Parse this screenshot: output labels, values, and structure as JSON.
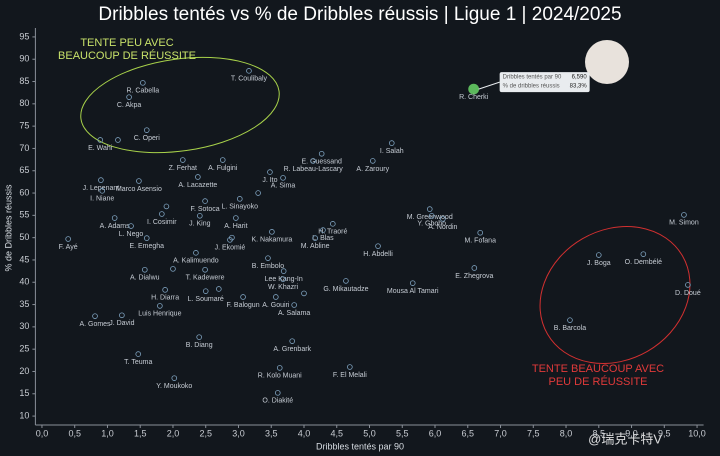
{
  "chart_data": {
    "type": "scatter",
    "title": "Dribbles tentés vs % de Dribbles réussis | Ligue 1 | 2024/2025",
    "x_label": "Dribbles tentés par 90",
    "y_label": "% de Dribbles réussis",
    "annotations": [
      "TENTE PEU AVEC",
      "BEAUCOUP DE RÉUSSITE",
      "TENTE BEAUCOUP AVEC",
      "PEU DE RÉUSSITE"
    ],
    "callout": {
      "x_caption": "Dribbles tentés par 90",
      "y_caption": "% de dribbles réussis"
    },
    "watermark": "@瑞克卡特V",
    "xlim": [
      -0.1,
      10.1
    ],
    "ylim": [
      8,
      97
    ],
    "xticks": [
      {
        "value": 0,
        "label": "0,0"
      },
      {
        "value": 0.5,
        "label": "0,5"
      },
      {
        "value": 1,
        "label": "1,0"
      },
      {
        "value": 1.5,
        "label": "1,5"
      },
      {
        "value": 2,
        "label": "2,0"
      },
      {
        "value": 2.5,
        "label": "2,5"
      },
      {
        "value": 3,
        "label": "3,0"
      },
      {
        "value": 3.5,
        "label": "3,5"
      },
      {
        "value": 4,
        "label": "4,0"
      },
      {
        "value": 4.5,
        "label": "4,5"
      },
      {
        "value": 5,
        "label": "5,0"
      },
      {
        "value": 5.5,
        "label": "5,5"
      },
      {
        "value": 6,
        "label": "6,0"
      },
      {
        "value": 6.5,
        "label": "6,5"
      },
      {
        "value": 7,
        "label": "7,0"
      },
      {
        "value": 7.5,
        "label": "7,5"
      },
      {
        "value": 8,
        "label": "8,0"
      },
      {
        "value": 8.5,
        "label": "8,5"
      },
      {
        "value": 9,
        "label": "9,0"
      },
      {
        "value": 9.5,
        "label": "9,5"
      },
      {
        "value": 10,
        "label": "10,0"
      }
    ],
    "yticks": [
      10,
      15,
      20,
      25,
      30,
      35,
      40,
      45,
      50,
      55,
      60,
      65,
      70,
      75,
      80,
      85,
      90,
      95
    ],
    "series": [
      {
        "color": "#7fa3c0",
        "labels": [
          "T. Coulibaly",
          "R. Cabella",
          "C. Akpa",
          "C. Operi",
          "E. Wahi",
          null,
          "E. Guessand",
          "I. Salah",
          "Z. Ferhat",
          "A. Fulgini",
          "R. Labeau-Lascary",
          "A. Zaroury",
          "J. Ito",
          "A. Sima",
          "A. Lacazette",
          "J. Lepenant",
          "Marco Asensio",
          "I. Niane",
          "F. Sotoca",
          "L. Sinayoko",
          "M. Greenwood",
          "Y. Gboho",
          "A. Nordin",
          "M. Simon",
          "I. Cosimir",
          "A. Adams",
          "L. Nego",
          "J. King",
          "A. Harit",
          "H. Traoré",
          "L. Blas",
          "M. Fofana",
          "F. Ayé",
          "E. Emegha",
          "J. Ekomié",
          "K. Nakamura",
          "M. Abline",
          "H. Abdelli",
          "A. Kalimuendo",
          "J. Boga",
          "O. Dembélé",
          "B. Embolo",
          "E. Zhegrova",
          "A. Dialwu",
          "T. Kadewere",
          "Lee Kang-In",
          "W. Khazri",
          "G. Mikautadze",
          "Mousa Al Tamari",
          "D. Doué",
          "H. Diarra",
          "L. Soumaré",
          "F. Balogun",
          "A. Gouiri",
          "A. Salama",
          "Luis Henrique",
          "A. Gomes",
          "J. David",
          "B. Barcola",
          "B. Diang",
          "A. Grenbark",
          "T. Teuma",
          "F. El Melali",
          "R. Kolo Muani",
          "Y. Moukoko",
          "O. Diakité",
          null,
          null,
          null,
          null,
          null,
          null
        ],
        "x": [
          3.16,
          1.54,
          1.33,
          1.6,
          0.89,
          1.16,
          4.27,
          5.34,
          2.15,
          2.76,
          4.14,
          5.05,
          3.48,
          3.68,
          2.38,
          0.9,
          1.48,
          0.92,
          2.49,
          3.02,
          5.92,
          5.95,
          6.12,
          9.8,
          1.83,
          1.11,
          1.36,
          2.41,
          2.96,
          4.44,
          4.29,
          6.69,
          0.4,
          1.6,
          2.87,
          3.51,
          4.17,
          5.13,
          2.35,
          8.5,
          9.18,
          3.45,
          6.6,
          1.57,
          2.49,
          3.69,
          3.68,
          4.64,
          5.66,
          9.86,
          1.88,
          2.5,
          3.07,
          3.57,
          3.85,
          1.8,
          0.81,
          1.22,
          8.06,
          2.4,
          3.82,
          1.47,
          4.7,
          3.63,
          2.02,
          3.6,
          1.9,
          2.9,
          3.3,
          2.0,
          2.7,
          4.0
        ],
        "values": [
          87.4,
          84.7,
          81.5,
          74.1,
          71.9,
          71.9,
          68.8,
          71.2,
          67.4,
          67.4,
          67.2,
          67.2,
          64.7,
          63.4,
          63.6,
          62.9,
          62.7,
          60.5,
          58.2,
          58.7,
          56.4,
          54.9,
          54.2,
          55.1,
          55.3,
          54.4,
          52.6,
          54.9,
          54.4,
          53.1,
          51.7,
          51.1,
          49.7,
          49.9,
          49.5,
          51.3,
          49.9,
          48.1,
          46.6,
          46.1,
          46.3,
          45.4,
          43.2,
          42.8,
          42.8,
          42.5,
          40.7,
          40.3,
          39.8,
          39.4,
          38.3,
          38.0,
          36.7,
          36.7,
          34.9,
          34.7,
          32.4,
          32.6,
          31.5,
          27.7,
          26.8,
          23.9,
          21.0,
          20.8,
          18.5,
          15.2,
          57.0,
          50.0,
          60.0,
          43.0,
          38.5,
          37.5
        ]
      },
      {
        "color": "#5cb85c",
        "labels": [
          "R. Cherki"
        ],
        "x": [
          6.59
        ],
        "values": [
          83.3
        ],
        "x_labels": [
          "6,590"
        ],
        "value_labels": [
          "83,3%"
        ]
      }
    ]
  }
}
